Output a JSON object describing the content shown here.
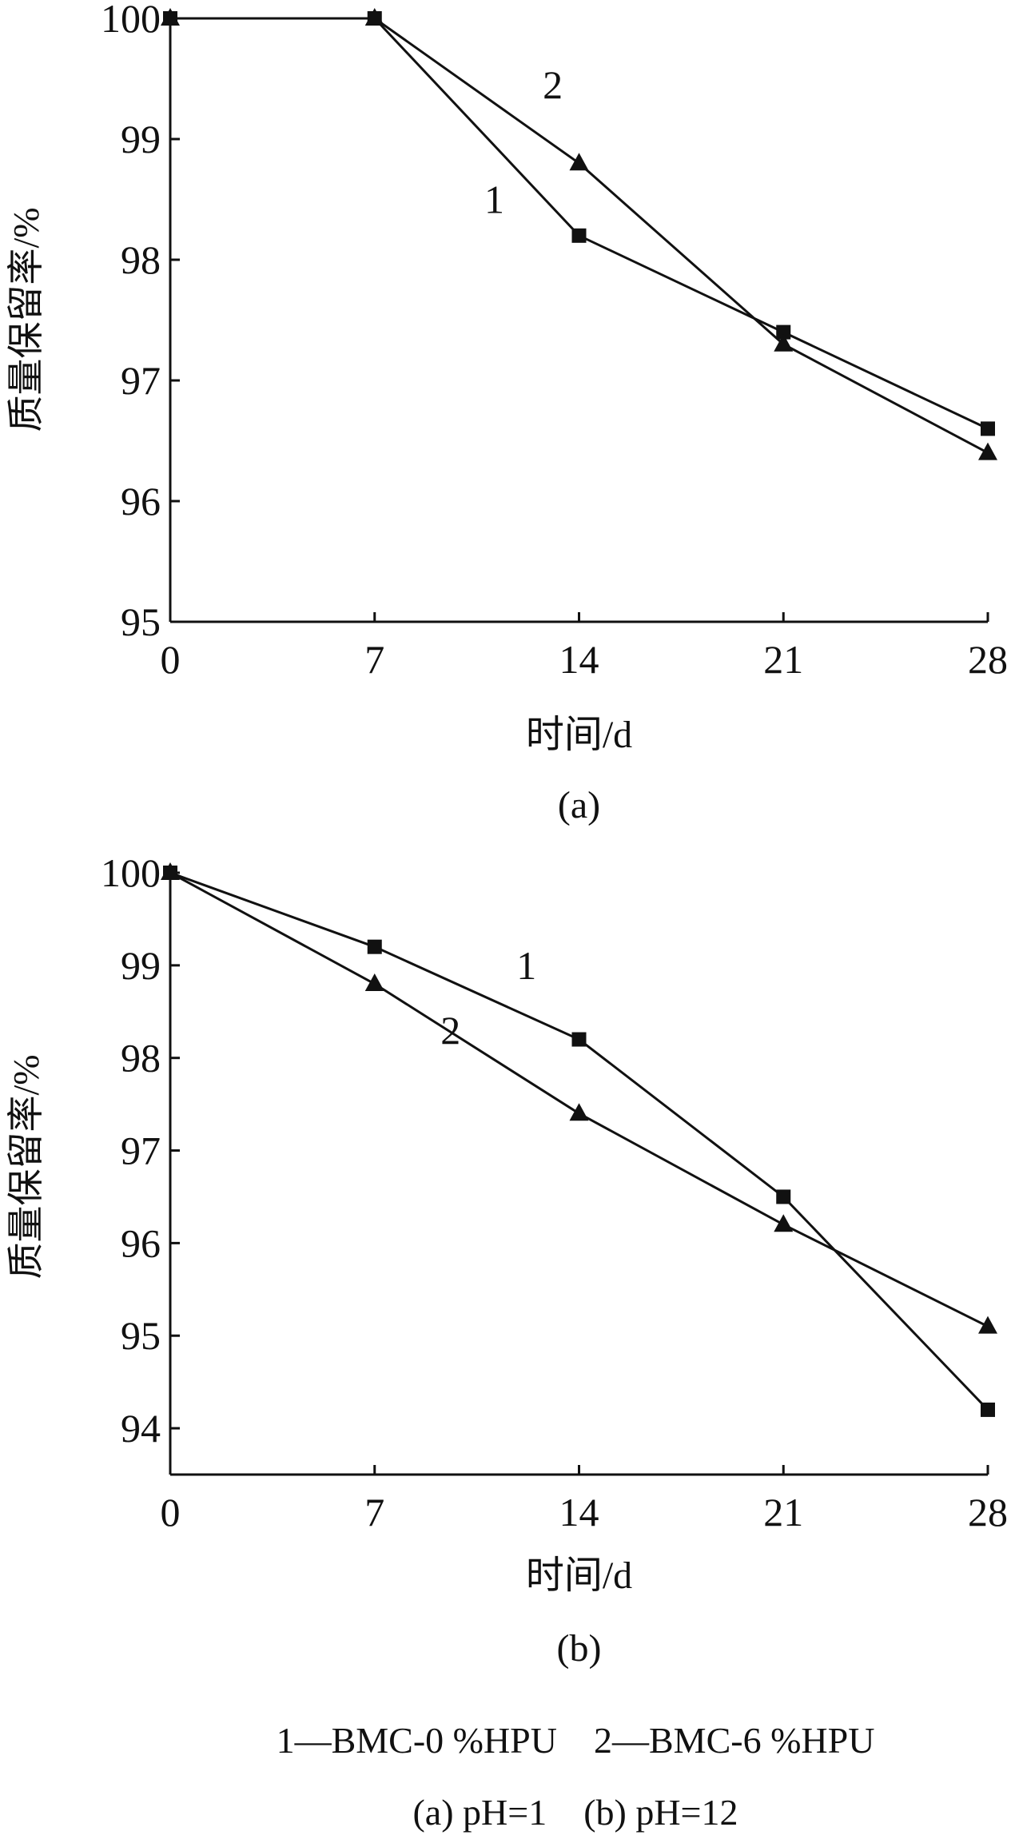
{
  "colors": {
    "ink": "#111111",
    "background": "#ffffff"
  },
  "chart_data": [
    {
      "type": "line",
      "panel_label": "(a)",
      "xlabel": "时间/d",
      "ylabel": "质量保留率/%",
      "x": [
        0,
        7,
        14,
        21,
        28
      ],
      "xlim": [
        0,
        28
      ],
      "ylim": [
        95,
        100
      ],
      "xticks": [
        "0",
        "7",
        "14",
        "21",
        "28"
      ],
      "yticks": [
        "95",
        "96",
        "97",
        "98",
        "99",
        "100"
      ],
      "grid": false,
      "series": [
        {
          "name": "1",
          "marker": "square",
          "values": [
            100,
            100,
            98.2,
            97.4,
            96.6
          ]
        },
        {
          "name": "2",
          "marker": "triangle",
          "values": [
            100,
            100,
            98.8,
            97.3,
            96.4
          ]
        }
      ],
      "annotations": [
        {
          "text": "1",
          "x": 11.1,
          "y": 98.5
        },
        {
          "text": "2",
          "x": 13.1,
          "y": 99.45
        }
      ]
    },
    {
      "type": "line",
      "panel_label": "(b)",
      "xlabel": "时间/d",
      "ylabel": "质量保留率/%",
      "x": [
        0,
        7,
        14,
        21,
        28
      ],
      "xlim": [
        0,
        28
      ],
      "ylim": [
        93.5,
        100
      ],
      "xticks": [
        "0",
        "7",
        "14",
        "21",
        "28"
      ],
      "yticks": [
        "94",
        "95",
        "96",
        "97",
        "98",
        "99",
        "100"
      ],
      "grid": false,
      "series": [
        {
          "name": "1",
          "marker": "square",
          "values": [
            100,
            99.2,
            98.2,
            96.5,
            94.2
          ]
        },
        {
          "name": "2",
          "marker": "triangle",
          "values": [
            100,
            98.8,
            97.4,
            96.2,
            95.1
          ]
        }
      ],
      "annotations": [
        {
          "text": "1",
          "x": 12.2,
          "y": 99.0
        },
        {
          "text": "2",
          "x": 9.6,
          "y": 98.3
        }
      ]
    }
  ],
  "caption": {
    "legend": "1—BMC-0 %HPU　2—BMC-6 %HPU",
    "ph_line": "(a) pH=1　(b) pH=12"
  }
}
